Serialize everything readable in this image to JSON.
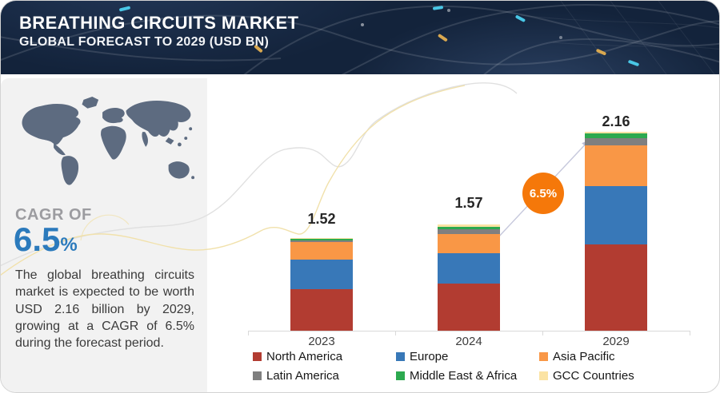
{
  "header": {
    "title": "BREATHING CIRCUITS MARKET",
    "subtitle": "GLOBAL FORECAST TO 2029 (USD BN)"
  },
  "sidebar": {
    "cagr_label": "CAGR OF",
    "cagr_value": "6.5",
    "cagr_unit": "%",
    "description": "The global breathing circuits market is expected to be worth USD 2.16 billion by 2029, growing at a CAGR of 6.5% during the forecast period."
  },
  "chart_data": {
    "type": "bar",
    "stacked": true,
    "units": "USD BN",
    "categories": [
      "2023",
      "2024",
      "2029"
    ],
    "totals": [
      1.52,
      1.57,
      2.16
    ],
    "total_labels": [
      "1.52",
      "1.57",
      "2.16"
    ],
    "series": [
      {
        "name": "North America",
        "color": "#b23c31",
        "values": [
          0.68,
          0.7,
          0.94
        ]
      },
      {
        "name": "Europe",
        "color": "#3878b8",
        "values": [
          0.48,
          0.45,
          0.63
        ]
      },
      {
        "name": "Asia Pacific",
        "color": "#f99746",
        "values": [
          0.29,
          0.28,
          0.44
        ]
      },
      {
        "name": "Latin America",
        "color": "#7f7f7f",
        "values": [
          0.03,
          0.07,
          0.08
        ]
      },
      {
        "name": "Middle East & Africa",
        "color": "#2ca94f",
        "values": [
          0.03,
          0.04,
          0.05
        ]
      },
      {
        "name": "GCC Countries",
        "color": "#fbe3a3",
        "values": [
          0.01,
          0.03,
          0.02
        ]
      }
    ],
    "badge_label": "6.5%",
    "legend_position": "bottom",
    "grid": false
  },
  "colors": {
    "header_bg": "#13233b",
    "sidebar_bg": "#f2f2f2",
    "accent_blue": "#2b7abc",
    "accent_orange": "#f5780a",
    "axis": "#d9d9d9",
    "map": "#5d6b80"
  }
}
